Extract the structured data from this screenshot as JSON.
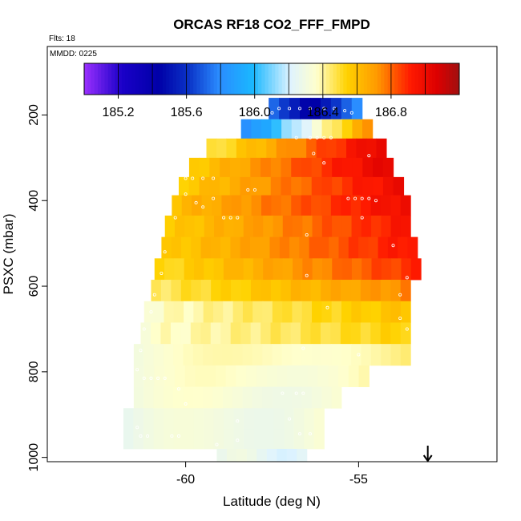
{
  "chart_data": {
    "type": "heatmap",
    "title": "ORCAS RF18 CO2_FFF_FMPD",
    "flts_label": "Flts: 18",
    "mmdd_label": "MMDD: 0225",
    "xlabel": "Latitude (deg N)",
    "ylabel": "PSXC (mbar)",
    "xlim": [
      -64.0,
      -51.0
    ],
    "ylim": [
      1010,
      40
    ],
    "x_ticks": [
      -60,
      -55
    ],
    "x_tick_labels": [
      "-60",
      "-55"
    ],
    "y_ticks": [
      200,
      400,
      600,
      800,
      1000
    ],
    "y_tick_labels": [
      "200",
      "400",
      "600",
      "800",
      "1000"
    ],
    "colorbar": {
      "min": 185.0,
      "max": 187.2,
      "tick_values": [
        185.2,
        185.6,
        186.0,
        186.4,
        186.8
      ],
      "tick_labels": [
        "185.2",
        "185.6",
        "186.0",
        "186.4",
        "186.8"
      ],
      "stops": [
        [
          0.0,
          "#9b30ff"
        ],
        [
          0.1,
          "#1a00c8"
        ],
        [
          0.2,
          "#0000a8"
        ],
        [
          0.28,
          "#0b34c8"
        ],
        [
          0.36,
          "#2a8cff"
        ],
        [
          0.45,
          "#1ab8ff"
        ],
        [
          0.55,
          "#dff3ff"
        ],
        [
          0.62,
          "#ffffcc"
        ],
        [
          0.7,
          "#ffd200"
        ],
        [
          0.78,
          "#ff9a00"
        ],
        [
          0.87,
          "#ff1a00"
        ],
        [
          0.94,
          "#dd0000"
        ],
        [
          1.0,
          "#a01010"
        ]
      ]
    },
    "arrow_latitude": -53.0,
    "rows": [
      {
        "p": 185,
        "x0": -57.6,
        "x1": -54.9,
        "v0": 185.5,
        "v1": 185.6,
        "shape": "dip"
      },
      {
        "p": 235,
        "x0": -58.4,
        "x1": -54.6,
        "v0": 185.75,
        "v1": 186.75,
        "shape": "lin"
      },
      {
        "p": 275,
        "x0": -59.4,
        "x1": -54.2,
        "v0": 186.45,
        "v1": 187.05,
        "shape": "lin"
      },
      {
        "p": 325,
        "x0": -59.9,
        "x1": -54.0,
        "v0": 186.55,
        "v1": 187.05,
        "shape": "lin"
      },
      {
        "p": 365,
        "x0": -60.2,
        "x1": -53.7,
        "v0": 186.55,
        "v1": 187.0,
        "shape": "lin"
      },
      {
        "p": 410,
        "x0": -60.4,
        "x1": -53.5,
        "v0": 186.6,
        "v1": 187.0,
        "shape": "lin"
      },
      {
        "p": 460,
        "x0": -60.6,
        "x1": -53.5,
        "v0": 186.55,
        "v1": 186.95,
        "shape": "lin"
      },
      {
        "p": 510,
        "x0": -60.7,
        "x1": -53.3,
        "v0": 186.55,
        "v1": 186.95,
        "shape": "lin"
      },
      {
        "p": 560,
        "x0": -60.9,
        "x1": -53.2,
        "v0": 186.5,
        "v1": 186.9,
        "shape": "lin"
      },
      {
        "p": 610,
        "x0": -61.0,
        "x1": -53.5,
        "v0": 186.45,
        "v1": 186.75,
        "shape": "lin"
      },
      {
        "p": 660,
        "x0": -61.2,
        "x1": -53.5,
        "v0": 186.35,
        "v1": 186.6,
        "shape": "lin"
      },
      {
        "p": 710,
        "x0": -61.3,
        "x1": -53.5,
        "v0": 186.35,
        "v1": 186.55,
        "shape": "lin"
      },
      {
        "p": 760,
        "x0": -61.5,
        "x1": -53.5,
        "v0": 186.3,
        "v1": 186.45,
        "shape": "dip"
      },
      {
        "p": 810,
        "x0": -61.5,
        "x1": -54.7,
        "v0": 186.3,
        "v1": 186.4,
        "shape": "dip"
      },
      {
        "p": 860,
        "x0": -61.5,
        "x1": -55.5,
        "v0": 186.3,
        "v1": 186.35,
        "shape": "dip"
      },
      {
        "p": 910,
        "x0": -61.8,
        "x1": -56.0,
        "v0": 186.25,
        "v1": 186.35,
        "shape": "dip"
      },
      {
        "p": 960,
        "x0": -61.8,
        "x1": -56.0,
        "v0": 186.25,
        "v1": 186.35,
        "shape": "dip"
      },
      {
        "p": 1000,
        "x0": -59.1,
        "x1": -56.5,
        "v0": 186.25,
        "v1": 186.25,
        "shape": "dip"
      }
    ],
    "points": [
      [
        -57.5,
        195
      ],
      [
        -57.3,
        185
      ],
      [
        -57.0,
        185
      ],
      [
        -56.7,
        185
      ],
      [
        -56.4,
        185
      ],
      [
        -56.0,
        185
      ],
      [
        -55.7,
        185
      ],
      [
        -55.4,
        190
      ],
      [
        -55.2,
        195
      ],
      [
        -56.4,
        253
      ],
      [
        -56.2,
        253
      ],
      [
        -56.0,
        253
      ],
      [
        -55.8,
        253
      ],
      [
        -56.8,
        253
      ],
      [
        -56.3,
        290
      ],
      [
        -56.0,
        312
      ],
      [
        -54.7,
        295
      ],
      [
        -60.0,
        348
      ],
      [
        -59.8,
        348
      ],
      [
        -59.5,
        348
      ],
      [
        -59.2,
        348
      ],
      [
        -60.0,
        385
      ],
      [
        -58.2,
        375
      ],
      [
        -58.0,
        375
      ],
      [
        -59.2,
        395
      ],
      [
        -59.7,
        405
      ],
      [
        -59.5,
        415
      ],
      [
        -55.3,
        395
      ],
      [
        -55.1,
        395
      ],
      [
        -54.9,
        395
      ],
      [
        -54.7,
        395
      ],
      [
        -54.5,
        400
      ],
      [
        -58.9,
        440
      ],
      [
        -58.7,
        440
      ],
      [
        -58.5,
        440
      ],
      [
        -60.3,
        440
      ],
      [
        -54.9,
        440
      ],
      [
        -56.5,
        480
      ],
      [
        -60.6,
        520
      ],
      [
        -54.0,
        505
      ],
      [
        -60.7,
        570
      ],
      [
        -56.5,
        575
      ],
      [
        -53.6,
        580
      ],
      [
        -60.9,
        620
      ],
      [
        -53.8,
        620
      ],
      [
        -61.0,
        660
      ],
      [
        -55.9,
        650
      ],
      [
        -53.8,
        675
      ],
      [
        -61.2,
        700
      ],
      [
        -53.6,
        700
      ],
      [
        -61.3,
        750
      ],
      [
        -56.6,
        745
      ],
      [
        -55.0,
        760
      ],
      [
        -61.4,
        795
      ],
      [
        -54.5,
        795
      ],
      [
        -61.2,
        815
      ],
      [
        -61.0,
        815
      ],
      [
        -60.8,
        815
      ],
      [
        -60.6,
        815
      ],
      [
        -60.2,
        840
      ],
      [
        -57.2,
        850
      ],
      [
        -56.8,
        850
      ],
      [
        -56.6,
        850
      ],
      [
        -60.0,
        875
      ],
      [
        -58.5,
        915
      ],
      [
        -57.0,
        910
      ],
      [
        -61.4,
        930
      ],
      [
        -61.3,
        950
      ],
      [
        -61.1,
        950
      ],
      [
        -60.4,
        950
      ],
      [
        -60.2,
        950
      ],
      [
        -59.1,
        970
      ],
      [
        -58.5,
        960
      ],
      [
        -56.7,
        945
      ],
      [
        -56.4,
        945
      ]
    ]
  }
}
